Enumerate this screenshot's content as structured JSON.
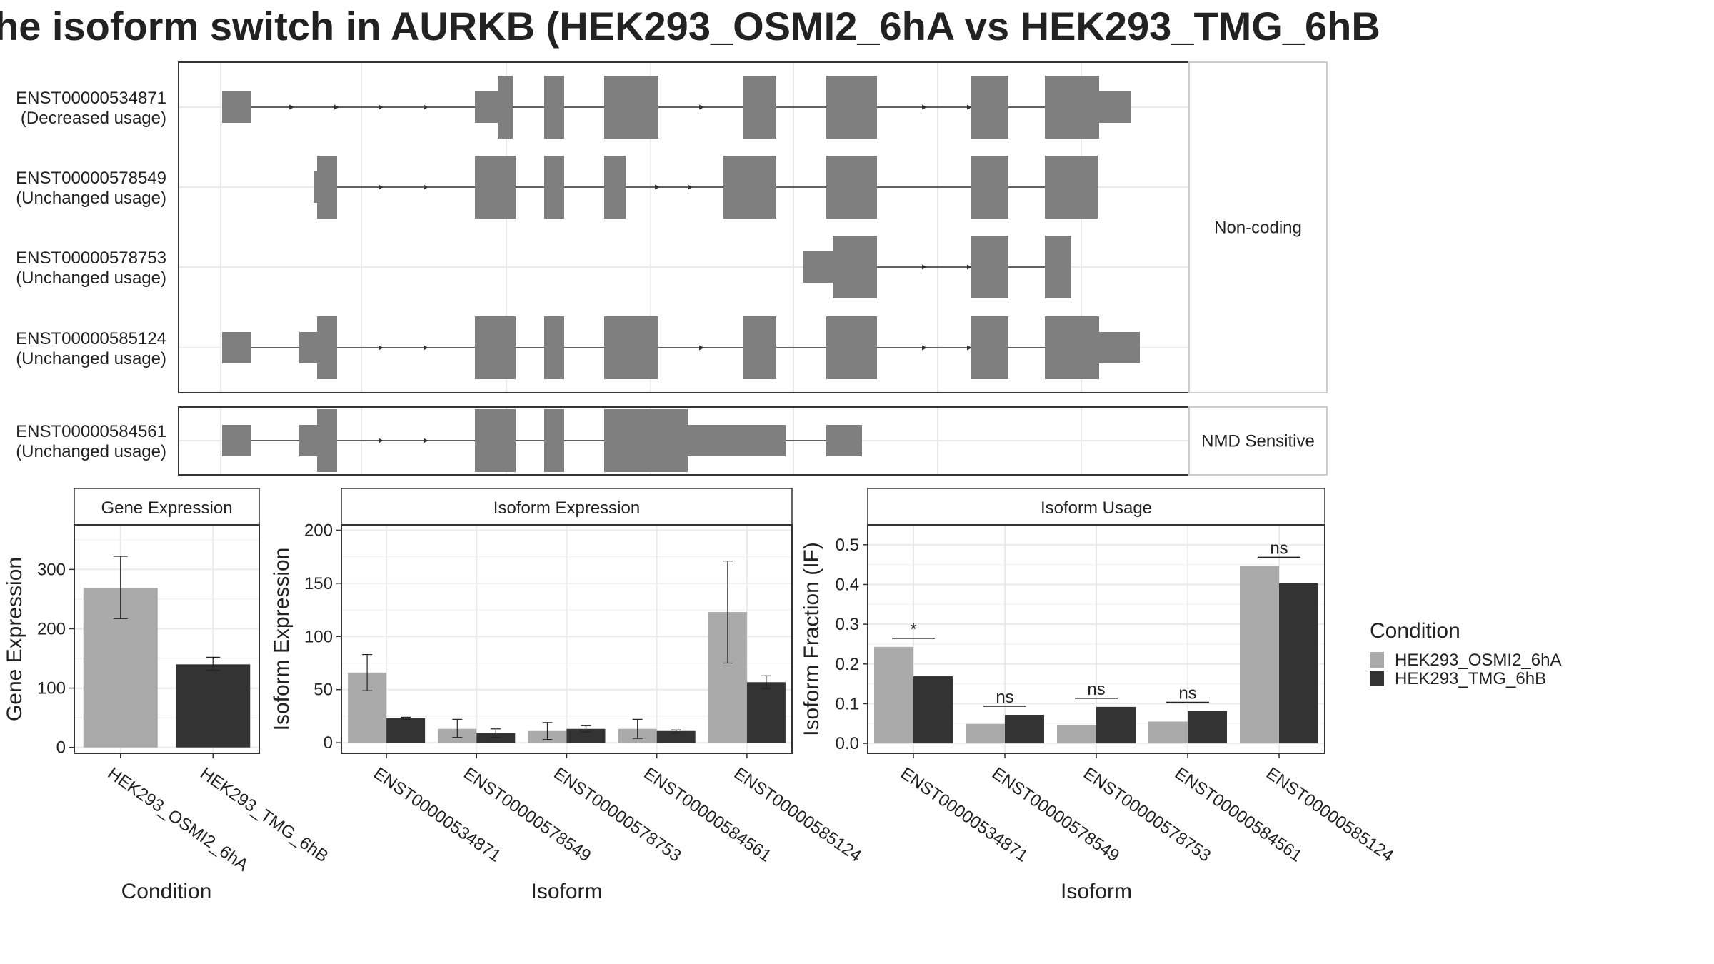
{
  "title": "he isoform switch in AURKB (HEK293_OSMI2_6hA vs HEK293_TMG_6hB",
  "colors": {
    "exon": "#7f7f7f",
    "condA": "#aaaaaa",
    "condB": "#333333",
    "grid": "#ebebeb",
    "panel_border": "#333333",
    "strip_border": "#cccccc"
  },
  "structure": {
    "groups": [
      {
        "label": "Non-coding",
        "transcripts": [
          {
            "id": "ENST00000534871",
            "usage": "(Decreased usage)",
            "exons": [
              [
                311,
                352,
                "s"
              ],
              [
                665,
                697,
                "s"
              ],
              [
                697,
                718,
                "t"
              ],
              [
                762,
                790,
                "t"
              ],
              [
                846,
                922,
                "t"
              ],
              [
                1040,
                1087,
                "t"
              ],
              [
                1157,
                1228,
                "t"
              ],
              [
                1360,
                1412,
                "t"
              ],
              [
                1463,
                1539,
                "t"
              ],
              [
                1539,
                1584,
                "s"
              ]
            ],
            "arrows": [
              410,
              473,
              535,
              598,
              984,
              1047,
              1296,
              1359
            ]
          },
          {
            "id": "ENST00000578549",
            "usage": "(Unchanged usage)",
            "exons": [
              [
                439,
                444,
                "s"
              ],
              [
                444,
                472,
                "t"
              ],
              [
                665,
                722,
                "t"
              ],
              [
                762,
                790,
                "t"
              ],
              [
                846,
                876,
                "t"
              ],
              [
                1013,
                1087,
                "t"
              ],
              [
                1157,
                1228,
                "t"
              ],
              [
                1360,
                1412,
                "t"
              ],
              [
                1463,
                1537,
                "t"
              ]
            ],
            "arrows": [
              535,
              598,
              922,
              968
            ]
          },
          {
            "id": "ENST00000578753",
            "usage": "(Unchanged usage)",
            "exons": [
              [
                1125,
                1166,
                "s"
              ],
              [
                1166,
                1228,
                "t"
              ],
              [
                1360,
                1412,
                "t"
              ],
              [
                1463,
                1500,
                "t"
              ]
            ],
            "arrows": [
              1296,
              1359
            ]
          },
          {
            "id": "ENST00000585124",
            "usage": "(Unchanged usage)",
            "exons": [
              [
                311,
                352,
                "s"
              ],
              [
                419,
                444,
                "s"
              ],
              [
                444,
                472,
                "t"
              ],
              [
                665,
                722,
                "t"
              ],
              [
                762,
                790,
                "t"
              ],
              [
                846,
                922,
                "t"
              ],
              [
                1040,
                1087,
                "t"
              ],
              [
                1157,
                1228,
                "t"
              ],
              [
                1360,
                1412,
                "t"
              ],
              [
                1463,
                1539,
                "t"
              ],
              [
                1539,
                1596,
                "s"
              ]
            ],
            "arrows": [
              535,
              598,
              984,
              1047,
              1296,
              1359
            ]
          }
        ]
      },
      {
        "label": "NMD Sensitive",
        "transcripts": [
          {
            "id": "ENST00000584561",
            "usage": "(Unchanged usage)",
            "exons": [
              [
                311,
                352,
                "s"
              ],
              [
                419,
                444,
                "s"
              ],
              [
                444,
                472,
                "t"
              ],
              [
                665,
                722,
                "t"
              ],
              [
                762,
                790,
                "t"
              ],
              [
                846,
                963,
                "t"
              ],
              [
                963,
                1100,
                "s"
              ],
              [
                1157,
                1207,
                "s"
              ]
            ],
            "arrows": [
              535,
              598
            ]
          }
        ]
      }
    ]
  },
  "chart_data": [
    {
      "type": "bar",
      "title": "Gene Expression",
      "xlabel": "Condition",
      "ylabel": "Gene Expression",
      "ylim": [
        -10,
        375
      ],
      "yticks": [
        0,
        100,
        200,
        300
      ],
      "categories": [
        "HEK293_OSMI2_6hA",
        "HEK293_TMG_6hB"
      ],
      "values": [
        269,
        140
      ],
      "error": [
        [
          217,
          322
        ],
        [
          130,
          152
        ]
      ],
      "colors": [
        "#aaaaaa",
        "#333333"
      ]
    },
    {
      "type": "bar",
      "title": "Isoform Expression",
      "xlabel": "Isoform",
      "ylabel": "Isoform Expression",
      "ylim": [
        -10,
        205
      ],
      "yticks": [
        0,
        50,
        100,
        150,
        200
      ],
      "categories": [
        "ENST00000534871",
        "ENST00000578549",
        "ENST00000578753",
        "ENST00000584561",
        "ENST00000585124"
      ],
      "series": [
        {
          "name": "HEK293_OSMI2_6hA",
          "values": [
            66,
            13,
            11,
            13,
            123
          ],
          "error": [
            [
              49,
              83
            ],
            [
              5,
              22
            ],
            [
              3,
              19
            ],
            [
              4,
              22
            ],
            [
              75,
              171
            ]
          ]
        },
        {
          "name": "HEK293_TMG_6hB",
          "values": [
            23,
            9,
            13,
            11,
            57
          ],
          "error": [
            [
              22,
              24
            ],
            [
              5,
              13
            ],
            [
              10,
              16
            ],
            [
              9,
              12
            ],
            [
              51,
              63
            ]
          ]
        }
      ]
    },
    {
      "type": "bar",
      "title": "Isoform Usage",
      "xlabel": "Isoform",
      "ylabel": "Isoform Fraction (IF)",
      "ylim": [
        -0.025,
        0.55
      ],
      "yticks": [
        0.0,
        0.1,
        0.2,
        0.3,
        0.4,
        0.5
      ],
      "categories": [
        "ENST00000534871",
        "ENST00000578549",
        "ENST00000578753",
        "ENST00000584561",
        "ENST00000585124"
      ],
      "series": [
        {
          "name": "HEK293_OSMI2_6hA",
          "values": [
            0.243,
            0.049,
            0.046,
            0.055,
            0.447
          ]
        },
        {
          "name": "HEK293_TMG_6hB",
          "values": [
            0.169,
            0.072,
            0.092,
            0.082,
            0.403
          ]
        }
      ],
      "significance": [
        "*",
        "ns",
        "ns",
        "ns",
        "ns"
      ]
    }
  ],
  "legend": {
    "title": "Condition",
    "items": [
      {
        "label": "HEK293_OSMI2_6hA",
        "color": "#aaaaaa"
      },
      {
        "label": "HEK293_TMG_6hB",
        "color": "#333333"
      }
    ]
  }
}
